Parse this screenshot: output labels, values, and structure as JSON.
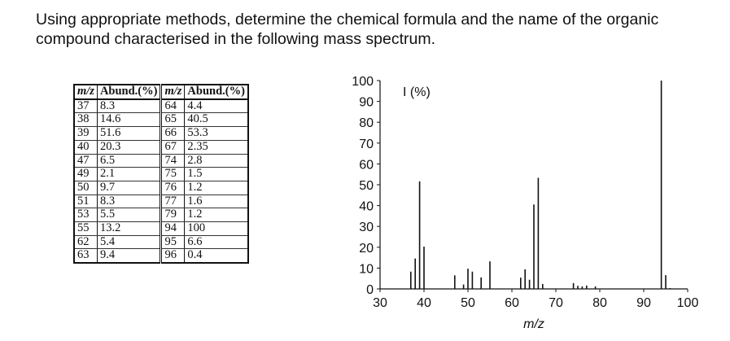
{
  "question": "Using appropriate methods, determine the chemical formula and the name of the organic compound characterised in the following mass spectrum.",
  "table": {
    "headers": [
      "m/z",
      "Abund.(%)",
      "m/z",
      "Abund.(%)"
    ],
    "rows": [
      [
        "37",
        "8.3",
        "64",
        "4.4"
      ],
      [
        "38",
        "14.6",
        "65",
        "40.5"
      ],
      [
        "39",
        "51.6",
        "66",
        "53.3"
      ],
      [
        "40",
        "20.3",
        "67",
        "2.35"
      ],
      [
        "47",
        "6.5",
        "74",
        "2.8"
      ],
      [
        "49",
        "2.1",
        "75",
        "1.5"
      ],
      [
        "50",
        "9.7",
        "76",
        "1.2"
      ],
      [
        "51",
        "8.3",
        "77",
        "1.6"
      ],
      [
        "53",
        "5.5",
        "79",
        "1.2"
      ],
      [
        "55",
        "13.2",
        "94",
        "100"
      ],
      [
        "62",
        "5.4",
        "95",
        "6.6"
      ],
      [
        "63",
        "9.4",
        "96",
        "0.4"
      ]
    ]
  },
  "chart_data": {
    "type": "bar",
    "xlabel": "m/z",
    "ylabel": "I (%)",
    "xlim": [
      30,
      100
    ],
    "ylim": [
      0,
      100
    ],
    "x_ticks": [
      "30",
      "40",
      "50",
      "60",
      "70",
      "80",
      "90",
      "100"
    ],
    "y_ticks": [
      "0",
      "10",
      "20",
      "30",
      "40",
      "50",
      "60",
      "70",
      "80",
      "90",
      "100"
    ],
    "grid": false,
    "bar_color": "#111111",
    "x": [
      37,
      38,
      39,
      40,
      47,
      49,
      50,
      51,
      53,
      55,
      62,
      63,
      64,
      65,
      66,
      67,
      74,
      75,
      76,
      77,
      79,
      94,
      95,
      96
    ],
    "values": [
      8.3,
      14.6,
      51.6,
      20.3,
      6.5,
      2.1,
      9.7,
      8.3,
      5.5,
      13.2,
      5.4,
      9.4,
      4.4,
      40.5,
      53.3,
      2.35,
      2.8,
      1.5,
      1.2,
      1.6,
      1.2,
      100,
      6.6,
      0.4
    ]
  }
}
